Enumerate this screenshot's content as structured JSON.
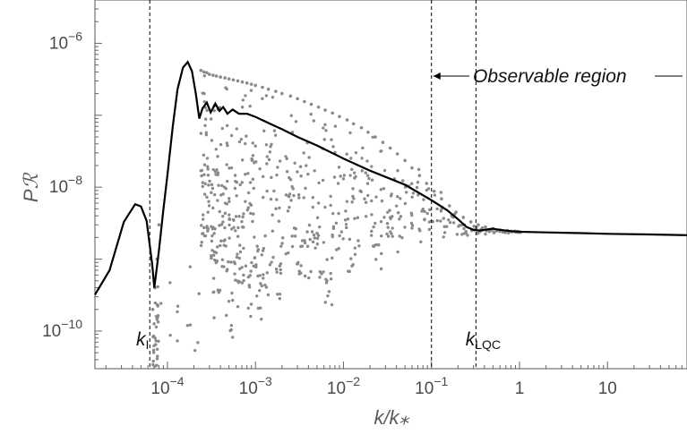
{
  "chart_data": {
    "type": "scatter",
    "title": "",
    "xlabel": "k/k⁎",
    "ylabel": "Pℛ",
    "x_scale": "log",
    "y_scale": "log",
    "xlim": [
      1.5e-05,
      80
    ],
    "ylim": [
      3e-11,
      4e-06
    ],
    "grid": false,
    "x_ticks": [
      {
        "value": 0.0001,
        "base": "10",
        "exp": "−4"
      },
      {
        "value": 0.001,
        "base": "10",
        "exp": "−3"
      },
      {
        "value": 0.01,
        "base": "10",
        "exp": "−2"
      },
      {
        "value": 0.1,
        "base": "10",
        "exp": "−1"
      },
      {
        "value": 1,
        "base": "1",
        "exp": ""
      },
      {
        "value": 10,
        "base": "10",
        "exp": ""
      }
    ],
    "y_ticks": [
      {
        "value": 1e-06,
        "base": "10",
        "exp": "−6"
      },
      {
        "value": 1e-08,
        "base": "10",
        "exp": "−8"
      },
      {
        "value": 1e-10,
        "base": "10",
        "exp": "−10"
      }
    ],
    "series": [
      {
        "kind": "line",
        "color": "#000000",
        "x": [
          1.5e-05,
          2.2e-05,
          3.2e-05,
          4.3e-05,
          5e-05,
          5.8e-05,
          6.7e-05,
          7.1e-05,
          8e-05,
          9e-05,
          0.0001,
          0.000115,
          0.00013,
          0.00015,
          0.00017,
          0.00019,
          0.00021,
          0.00023,
          0.00025,
          0.00028,
          0.00031,
          0.00035,
          0.00039,
          0.00043,
          0.00048,
          0.00055,
          0.00065,
          0.0008,
          0.001,
          0.0015,
          0.002,
          0.003,
          0.005,
          0.01,
          0.02,
          0.05,
          0.1,
          0.15,
          0.2,
          0.25,
          0.3,
          0.35,
          0.4,
          0.5,
          0.6,
          0.8,
          1.0,
          2.0,
          5.0,
          10,
          30,
          80
        ],
        "y": [
          3.2e-10,
          7e-10,
          3.3e-09,
          5.8e-09,
          5.4e-09,
          3.4e-09,
          8.5e-10,
          4e-10,
          1.3e-09,
          5e-09,
          1.5e-08,
          7e-08,
          2.3e-07,
          4.6e-07,
          5.5e-07,
          4.1e-07,
          2e-07,
          9e-08,
          1.25e-07,
          1.5e-07,
          1.1e-07,
          1.45e-07,
          1.15e-07,
          1.3e-07,
          1.05e-07,
          1.2e-07,
          1.05e-07,
          1.05e-07,
          9.5e-08,
          7.5e-08,
          6.4e-08,
          5e-08,
          3.8e-08,
          2.5e-08,
          1.7e-08,
          1.08e-08,
          6.6e-09,
          4.8e-09,
          3.6e-09,
          2.8e-09,
          2.55e-09,
          2.5e-09,
          2.55e-09,
          2.65e-09,
          2.55e-09,
          2.45e-09,
          2.4e-09,
          2.35e-09,
          2.3e-09,
          2.25e-09,
          2.2e-09,
          2.15e-09
        ]
      },
      {
        "kind": "scatter",
        "color": "#8a8a8a",
        "description_free": true,
        "x": [
          6.8e-05,
          7.2e-05,
          7.6e-05,
          8e-05,
          0.00024,
          0.00026,
          0.00028,
          0.0003,
          0.00033,
          0.00036,
          0.0004,
          0.00045,
          0.0005,
          0.00056,
          0.00063,
          0.00071,
          0.0008,
          0.0009,
          0.001,
          0.0012,
          0.0014,
          0.0017,
          0.002,
          0.0025,
          0.003,
          0.0036,
          0.0043,
          0.0052,
          0.0062,
          0.0075,
          0.009,
          0.011,
          0.013,
          0.016,
          0.019,
          0.023,
          0.028,
          0.034,
          0.041,
          0.05,
          0.06,
          0.073,
          0.088,
          0.107,
          0.13,
          0.16,
          0.19,
          0.23,
          0.28,
          0.34,
          0.41,
          0.5,
          0.6,
          0.73,
          0.88,
          1.0
        ],
        "y_upper": [
          2e-10,
          4e-10,
          1e-09,
          3e-09,
          4.2e-07,
          4e-07,
          3.9e-07,
          3.7e-07,
          3.6e-07,
          3.5e-07,
          3.4e-07,
          3.3e-07,
          3.2e-07,
          3.1e-07,
          3e-07,
          2.9e-07,
          2.8e-07,
          2.7e-07,
          2.6e-07,
          2.45e-07,
          2.3e-07,
          2.15e-07,
          2e-07,
          1.85e-07,
          1.7e-07,
          1.55e-07,
          1.42e-07,
          1.3e-07,
          1.18e-07,
          1.07e-07,
          9.6e-08,
          8.6e-08,
          7.6e-08,
          6.7e-08,
          5.8e-08,
          5e-08,
          4.2e-08,
          3.5e-08,
          2.9e-08,
          2.35e-08,
          1.85e-08,
          1.45e-08,
          1.13e-08,
          8.8e-09,
          6.9e-09,
          5.5e-09,
          4.5e-09,
          3.8e-09,
          3.3e-09,
          3e-09,
          2.8e-09,
          2.65e-09,
          2.55e-09,
          2.5e-09,
          2.45e-09,
          2.4e-09
        ],
        "y_lower": [
          3e-11,
          3.2e-11,
          3.6e-11,
          5e-11,
          1.5e-09,
          1.2e-09,
          2e-09,
          1e-09,
          1e-10,
          3e-10,
          6e-10,
          1.5e-10,
          8e-11,
          3e-10,
          2e-10,
          5e-10,
          1.5e-10,
          4e-10,
          1.2e-10,
          3e-10,
          7e-10,
          2.5e-10,
          1e-09,
          3.5e-10,
          6e-10,
          4.5e-10,
          1.2e-09,
          5e-10,
          2e-10,
          8e-10,
          1.5e-09,
          4e-10,
          1e-09,
          2.5e-09,
          1.3e-09,
          6e-10,
          2e-09,
          1.8e-09,
          1e-09,
          3e-09,
          2.2e-09,
          1.6e-09,
          2.5e-09,
          3e-09,
          1.9e-09,
          2.5e-09,
          2.2e-09,
          2e-09,
          2.1e-09,
          2.2e-09,
          2.3e-09,
          2.3e-09,
          2.3e-09,
          2.3e-09,
          2.35e-09,
          2.35e-09
        ]
      }
    ],
    "vlines": [
      {
        "x": 6.3e-05,
        "label": "k",
        "sub": "I"
      },
      {
        "x": 0.1,
        "label": "",
        "sub": ""
      },
      {
        "x": 0.32,
        "label": "k",
        "sub": "LQC"
      }
    ],
    "annotations": [
      {
        "text": "Observable region",
        "x_from": 0.1,
        "x_to": 80,
        "y": 3.5e-07
      }
    ]
  }
}
